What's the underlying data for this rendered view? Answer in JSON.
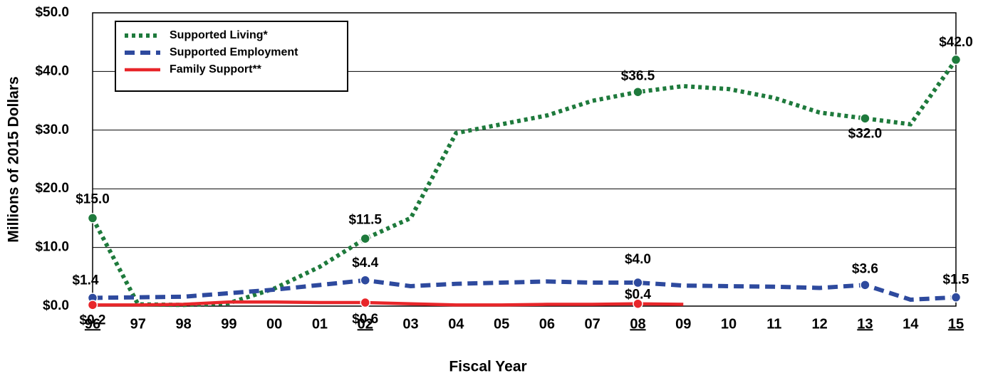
{
  "chart_data": {
    "type": "line",
    "y_axis_label": "Millions of 2015 Dollars",
    "x_axis_label": "Fiscal Year",
    "categories": [
      "96",
      "97",
      "98",
      "99",
      "00",
      "01",
      "02",
      "03",
      "04",
      "05",
      "06",
      "07",
      "08",
      "09",
      "10",
      "11",
      "12",
      "13",
      "14",
      "15"
    ],
    "underline": [
      0,
      6,
      12,
      17,
      19
    ],
    "ylim": [
      0,
      50
    ],
    "yticks": [
      {
        "value": 0,
        "label": "$0.0"
      },
      {
        "value": 10,
        "label": "$10.0"
      },
      {
        "value": 20,
        "label": "$20.0"
      },
      {
        "value": 30,
        "label": "$30.0"
      },
      {
        "value": 40,
        "label": "$40.0"
      },
      {
        "value": 50,
        "label": "$50.0"
      }
    ],
    "grid": true,
    "legend": "upper left",
    "series": [
      {
        "name": "Supported Living*",
        "color": "#1e7a3c",
        "style": "dotted",
        "values": [
          15.0,
          0.3,
          0.2,
          0.5,
          3.0,
          6.7,
          11.5,
          15.0,
          29.5,
          31.0,
          32.5,
          35.0,
          36.5,
          37.5,
          37.0,
          35.5,
          33.0,
          32.0,
          31.0,
          42.0
        ],
        "value_labels": [
          "$15.0",
          null,
          null,
          null,
          null,
          null,
          "$11.5",
          null,
          null,
          null,
          null,
          null,
          "$36.5",
          null,
          null,
          null,
          null,
          "$32.0",
          null,
          "$42.0"
        ]
      },
      {
        "name": "Supported Employment",
        "color": "#2e4a9e",
        "style": "dashed",
        "values": [
          1.4,
          1.5,
          1.6,
          2.2,
          2.8,
          3.6,
          4.4,
          3.4,
          3.8,
          4.0,
          4.2,
          4.0,
          4.0,
          3.5,
          3.4,
          3.3,
          3.1,
          3.6,
          1.1,
          1.5
        ],
        "value_labels": [
          "$1.4",
          null,
          null,
          null,
          null,
          null,
          "$4.4",
          null,
          null,
          null,
          null,
          null,
          "$4.0",
          null,
          null,
          null,
          null,
          "$3.6",
          null,
          "$1.5"
        ]
      },
      {
        "name": "Family Support**",
        "color": "#e8262a",
        "style": "solid",
        "values": [
          0.2,
          0.2,
          0.3,
          0.7,
          0.7,
          0.6,
          0.6,
          0.4,
          0.2,
          0.2,
          0.3,
          0.3,
          0.4,
          0.3,
          null,
          null,
          null,
          null,
          null,
          null
        ],
        "value_labels": [
          "$0.2",
          null,
          null,
          null,
          null,
          null,
          "$0.6",
          null,
          null,
          null,
          null,
          null,
          "$0.4",
          null,
          null,
          null,
          null,
          null,
          null,
          null
        ]
      }
    ]
  }
}
